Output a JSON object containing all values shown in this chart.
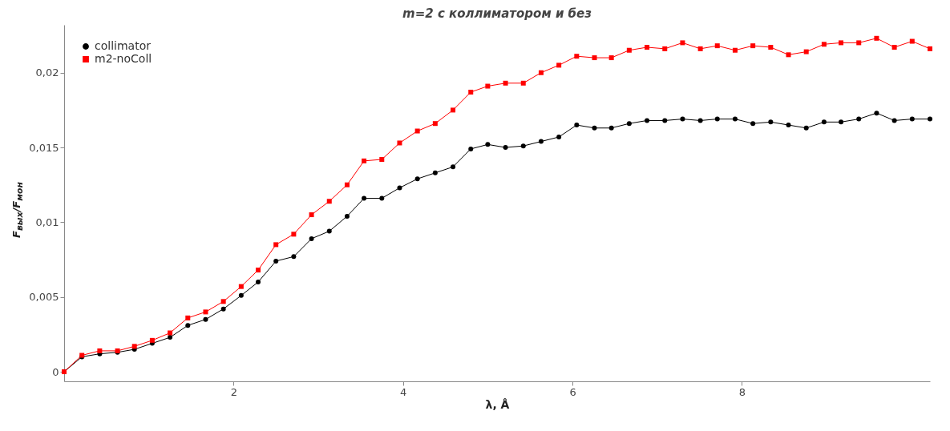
{
  "chart_data": {
    "type": "line",
    "title": "m=2  с коллиматором и без",
    "xlabel": "λ, Å",
    "ylabel": "F$_{вых}$/F$_{мон}$",
    "x": [
      0,
      0.21,
      0.42,
      0.63,
      0.83,
      1.04,
      1.25,
      1.46,
      1.67,
      1.88,
      2.09,
      2.29,
      2.5,
      2.71,
      2.92,
      3.13,
      3.34,
      3.54,
      3.75,
      3.96,
      4.17,
      4.38,
      4.59,
      4.8,
      5.0,
      5.21,
      5.42,
      5.63,
      5.84,
      6.05,
      6.26,
      6.46,
      6.67,
      6.88,
      7.09,
      7.3,
      7.51,
      7.71,
      7.92,
      8.13,
      8.34,
      8.55,
      8.76,
      8.97,
      9.17,
      9.38,
      9.59,
      9.8,
      10.01,
      10.22
    ],
    "series": [
      {
        "name": "collimator",
        "color": "#000000",
        "marker": "circle",
        "values": [
          0,
          0.001,
          0.0012,
          0.0013,
          0.0015,
          0.0019,
          0.0023,
          0.0031,
          0.0035,
          0.0042,
          0.0051,
          0.006,
          0.0074,
          0.0077,
          0.0089,
          0.0094,
          0.0104,
          0.0116,
          0.0116,
          0.0123,
          0.0129,
          0.0133,
          0.0137,
          0.0149,
          0.0152,
          0.015,
          0.0151,
          0.0154,
          0.0157,
          0.0165,
          0.0163,
          0.0163,
          0.0166,
          0.0168,
          0.0168,
          0.0169,
          0.0168,
          0.0169,
          0.0169,
          0.0166,
          0.0167,
          0.0165,
          0.0163,
          0.0167,
          0.0167,
          0.0169,
          0.0173,
          0.0168,
          0.0169,
          0.0169
        ]
      },
      {
        "name": "m2-noColl",
        "color": "#ff0000",
        "marker": "square",
        "values": [
          0,
          0.0011,
          0.0014,
          0.0014,
          0.0017,
          0.0021,
          0.0026,
          0.0036,
          0.004,
          0.0047,
          0.0057,
          0.0068,
          0.0085,
          0.0092,
          0.0105,
          0.0114,
          0.0125,
          0.0141,
          0.0142,
          0.0153,
          0.0161,
          0.0166,
          0.0175,
          0.0187,
          0.0191,
          0.0193,
          0.0193,
          0.02,
          0.0205,
          0.0211,
          0.021,
          0.021,
          0.0215,
          0.0217,
          0.0216,
          0.022,
          0.0216,
          0.0218,
          0.0215,
          0.0218,
          0.0217,
          0.0212,
          0.0214,
          0.0219,
          0.022,
          0.022,
          0.0223,
          0.0217,
          0.0221,
          0.0216
        ]
      }
    ],
    "xlim": [
      0,
      10.22
    ],
    "ylim": [
      -0.00064,
      0.0232
    ],
    "xticks": [
      2,
      4,
      6,
      8
    ],
    "yticks": [
      0,
      {
        "value": 0.005,
        "label": "0,005"
      },
      {
        "value": 0.01,
        "label": "0,01"
      },
      {
        "value": 0.015,
        "label": "0,015"
      },
      {
        "value": 0.02,
        "label": "0,02"
      }
    ],
    "grid": false,
    "legend": "top left",
    "line_style": "solid"
  }
}
